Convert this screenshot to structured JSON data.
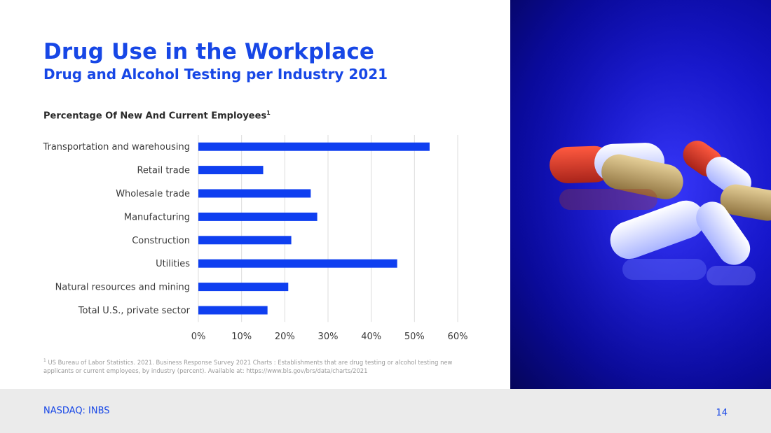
{
  "header": {
    "title": "Drug Use in the Workplace",
    "subtitle": "Drug and Alcohol Testing per Industry 2021"
  },
  "chart_heading": {
    "text": "Percentage Of New And Current Employees",
    "superscript": "1"
  },
  "chart_data": {
    "type": "bar",
    "orientation": "horizontal",
    "categories": [
      "Transportation and warehousing",
      "Retail trade",
      "Wholesale trade",
      "Manufacturing",
      "Construction",
      "Utilities",
      "Natural resources and mining",
      "Total U.S., private sector"
    ],
    "values": [
      53.5,
      15,
      26,
      27.5,
      21.5,
      46,
      20.8,
      16
    ],
    "xlim": [
      0,
      60
    ],
    "xticks": [
      "0%",
      "10%",
      "20%",
      "30%",
      "40%",
      "50%",
      "60%"
    ],
    "grid": "vertical",
    "bar_color": "#0f3ff0"
  },
  "footnote": {
    "marker": "1",
    "text": "US Bureau of Labor Statistics. 2021. Business Response Survey 2021 Charts : Establishments that are drug testing or alcohol testing new applicants or current employees, by industry (percent). Available at: https://www.bls.gov/brs/data/charts/2021"
  },
  "footer": {
    "ticker": "NASDAQ: INBS",
    "page_number": "14"
  },
  "colors": {
    "accent": "#1747e6",
    "photo_background": "#1616d8"
  }
}
